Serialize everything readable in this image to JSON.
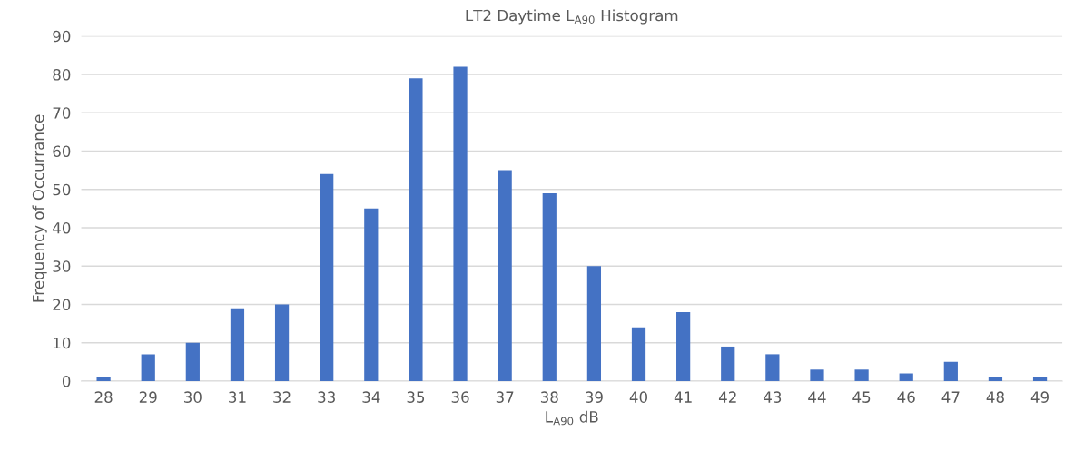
{
  "chart_data": {
    "type": "bar",
    "title": "LT2 Daytime L$_{A90}$ Histogram",
    "xlabel": "L$_{A90}$ dB",
    "ylabel": "Frequency of Occurrance",
    "categories": [
      "28",
      "29",
      "30",
      "31",
      "32",
      "33",
      "34",
      "35",
      "36",
      "37",
      "38",
      "39",
      "40",
      "41",
      "42",
      "43",
      "44",
      "45",
      "46",
      "47",
      "48",
      "49"
    ],
    "values": [
      1,
      7,
      10,
      19,
      20,
      54,
      45,
      79,
      82,
      55,
      49,
      30,
      14,
      18,
      9,
      7,
      3,
      3,
      2,
      5,
      1,
      1
    ],
    "color": "#4472c4",
    "ylim": [
      0,
      90
    ],
    "yticks": [
      0,
      10,
      20,
      30,
      40,
      50,
      60,
      70,
      80,
      90
    ],
    "grid": "y"
  }
}
